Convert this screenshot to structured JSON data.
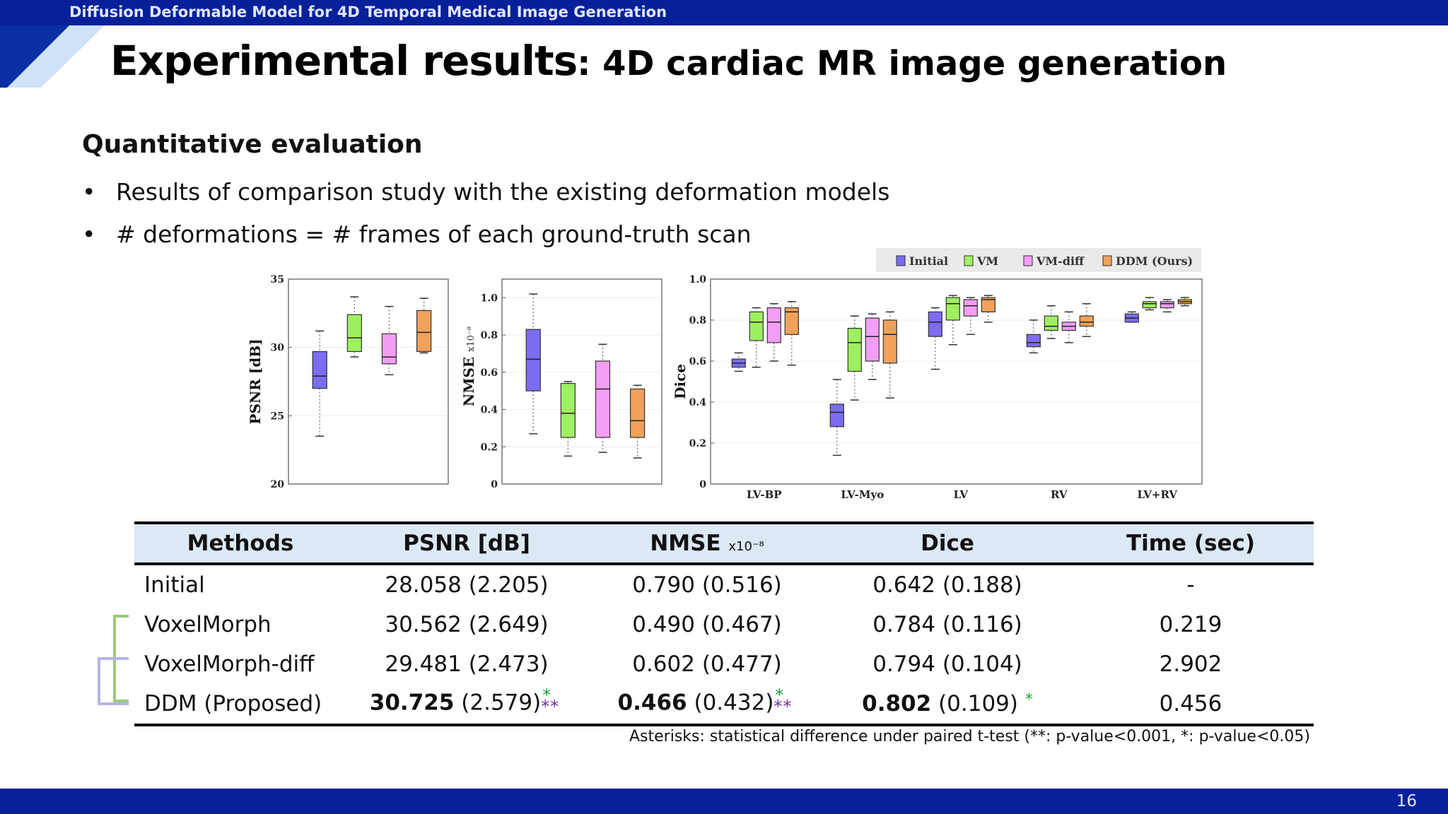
{
  "header": {
    "deck_title": "Diffusion Deformable Model for 4D Temporal Medical Image Generation"
  },
  "title": {
    "main": "Experimental results",
    "sub": ": 4D cardiac MR image generation"
  },
  "subheading": "Quantitative evaluation",
  "bullets": [
    "Results of comparison study with the existing deformation models",
    "# deformations = # frames of each ground-truth scan"
  ],
  "chart_data": [
    {
      "type": "box",
      "ylabel": "PSNR [dB]",
      "ylim": [
        20,
        35
      ],
      "yticks": [
        "20",
        "25",
        "30",
        "35"
      ],
      "series": [
        {
          "name": "Initial",
          "min": 23.5,
          "q1": 27.0,
          "median": 27.9,
          "q3": 29.7,
          "max": 31.2
        },
        {
          "name": "VM",
          "min": 29.3,
          "q1": 29.7,
          "median": 30.7,
          "q3": 32.4,
          "max": 33.7
        },
        {
          "name": "VM-diff",
          "min": 28.0,
          "q1": 28.8,
          "median": 29.3,
          "q3": 31.0,
          "max": 33.0
        },
        {
          "name": "DDM (Ours)",
          "min": 29.6,
          "q1": 29.7,
          "median": 31.1,
          "q3": 32.7,
          "max": 33.6
        }
      ]
    },
    {
      "type": "box",
      "ylabel": "NMSE",
      "yunit": "x10⁻⁸",
      "ylim": [
        0,
        1.1
      ],
      "yticks": [
        "0",
        "0.2",
        "0.4",
        "0.6",
        "0.8",
        "1.0"
      ],
      "series": [
        {
          "name": "Initial",
          "min": 0.27,
          "q1": 0.5,
          "median": 0.67,
          "q3": 0.83,
          "max": 1.02
        },
        {
          "name": "VM",
          "min": 0.15,
          "q1": 0.25,
          "median": 0.38,
          "q3": 0.54,
          "max": 0.55
        },
        {
          "name": "VM-diff",
          "min": 0.17,
          "q1": 0.25,
          "median": 0.51,
          "q3": 0.66,
          "max": 0.75
        },
        {
          "name": "DDM (Ours)",
          "min": 0.14,
          "q1": 0.25,
          "median": 0.34,
          "q3": 0.51,
          "max": 0.53
        }
      ]
    },
    {
      "type": "box",
      "ylabel": "Dice",
      "ylim": [
        0,
        1.0
      ],
      "yticks": [
        "0",
        "0.2",
        "0.4",
        "0.6",
        "0.8",
        "1.0"
      ],
      "categories": [
        "LV-BP",
        "LV-Myo",
        "LV",
        "RV",
        "LV+RV"
      ],
      "legend": [
        "Initial",
        "VM",
        "VM-diff",
        "DDM (Ours)"
      ],
      "legend_position": "top-right",
      "series": [
        {
          "name": "Initial",
          "boxes": [
            {
              "min": 0.55,
              "q1": 0.57,
              "median": 0.59,
              "q3": 0.61,
              "max": 0.64
            },
            {
              "min": 0.14,
              "q1": 0.28,
              "median": 0.35,
              "q3": 0.39,
              "max": 0.51
            },
            {
              "min": 0.56,
              "q1": 0.72,
              "median": 0.79,
              "q3": 0.84,
              "max": 0.86
            },
            {
              "min": 0.64,
              "q1": 0.67,
              "median": 0.69,
              "q3": 0.73,
              "max": 0.8
            },
            {
              "min": 0.79,
              "q1": 0.79,
              "median": 0.81,
              "q3": 0.83,
              "max": 0.84
            }
          ]
        },
        {
          "name": "VM",
          "boxes": [
            {
              "min": 0.57,
              "q1": 0.7,
              "median": 0.79,
              "q3": 0.84,
              "max": 0.86
            },
            {
              "min": 0.41,
              "q1": 0.55,
              "median": 0.69,
              "q3": 0.76,
              "max": 0.82
            },
            {
              "min": 0.68,
              "q1": 0.8,
              "median": 0.88,
              "q3": 0.91,
              "max": 0.92
            },
            {
              "min": 0.71,
              "q1": 0.75,
              "median": 0.77,
              "q3": 0.82,
              "max": 0.87
            },
            {
              "min": 0.85,
              "q1": 0.86,
              "median": 0.88,
              "q3": 0.89,
              "max": 0.91
            }
          ]
        },
        {
          "name": "VM-diff",
          "boxes": [
            {
              "min": 0.6,
              "q1": 0.69,
              "median": 0.79,
              "q3": 0.86,
              "max": 0.88
            },
            {
              "min": 0.51,
              "q1": 0.6,
              "median": 0.72,
              "q3": 0.81,
              "max": 0.83
            },
            {
              "min": 0.73,
              "q1": 0.82,
              "median": 0.87,
              "q3": 0.9,
              "max": 0.91
            },
            {
              "min": 0.69,
              "q1": 0.75,
              "median": 0.77,
              "q3": 0.79,
              "max": 0.84
            },
            {
              "min": 0.84,
              "q1": 0.86,
              "median": 0.88,
              "q3": 0.89,
              "max": 0.9
            }
          ]
        },
        {
          "name": "DDM (Ours)",
          "boxes": [
            {
              "min": 0.58,
              "q1": 0.73,
              "median": 0.84,
              "q3": 0.86,
              "max": 0.89
            },
            {
              "min": 0.42,
              "q1": 0.59,
              "median": 0.73,
              "q3": 0.8,
              "max": 0.84
            },
            {
              "min": 0.79,
              "q1": 0.84,
              "median": 0.9,
              "q3": 0.91,
              "max": 0.92
            },
            {
              "min": 0.72,
              "q1": 0.77,
              "median": 0.79,
              "q3": 0.82,
              "max": 0.88
            },
            {
              "min": 0.87,
              "q1": 0.88,
              "median": 0.89,
              "q3": 0.9,
              "max": 0.91
            }
          ]
        }
      ]
    },
    {
      "type": "table",
      "columns": [
        "Methods",
        "PSNR [dB]",
        "NMSE",
        "Dice",
        "Time (sec)"
      ],
      "nmse_unit": "x10⁻⁸",
      "rows": [
        {
          "method": "Initial",
          "psnr_mean": "28.058",
          "psnr_sd": "(2.205)",
          "nmse_mean": "0.790",
          "nmse_sd": "(0.516)",
          "dice_mean": "0.642",
          "dice_sd": "(0.188)",
          "time": "-"
        },
        {
          "method": "VoxelMorph",
          "psnr_mean": "30.562",
          "psnr_sd": "(2.649)",
          "nmse_mean": "0.490",
          "nmse_sd": "(0.467)",
          "dice_mean": "0.784",
          "dice_sd": "(0.116)",
          "time": "0.219"
        },
        {
          "method": "VoxelMorph-diff",
          "psnr_mean": "29.481",
          "psnr_sd": "(2.473)",
          "nmse_mean": "0.602",
          "nmse_sd": "(0.477)",
          "dice_mean": "0.794",
          "dice_sd": "(0.104)",
          "time": "2.902"
        },
        {
          "method": "DDM (Proposed)",
          "psnr_mean": "30.725",
          "psnr_sd": "(2.579)",
          "nmse_mean": "0.466",
          "nmse_sd": "(0.432)",
          "dice_mean": "0.802",
          "dice_sd": "(0.109)",
          "time": "0.456"
        }
      ],
      "sig_single": "*",
      "sig_double": "**"
    }
  ],
  "colors": {
    "Initial": "#7b6cf0",
    "VM": "#9ef060",
    "VM-diff": "#f39ef5",
    "DDM (Ours)": "#f0a25a",
    "bar": "#06209a",
    "header_row": "#dce8f4",
    "sig_green": "#1f9e3c",
    "sig_purple": "#7030a0"
  },
  "footnote": "Asterisks: statistical difference under paired t-test (**: p-value<0.001, *: p-value<0.05)",
  "page_number": "16"
}
